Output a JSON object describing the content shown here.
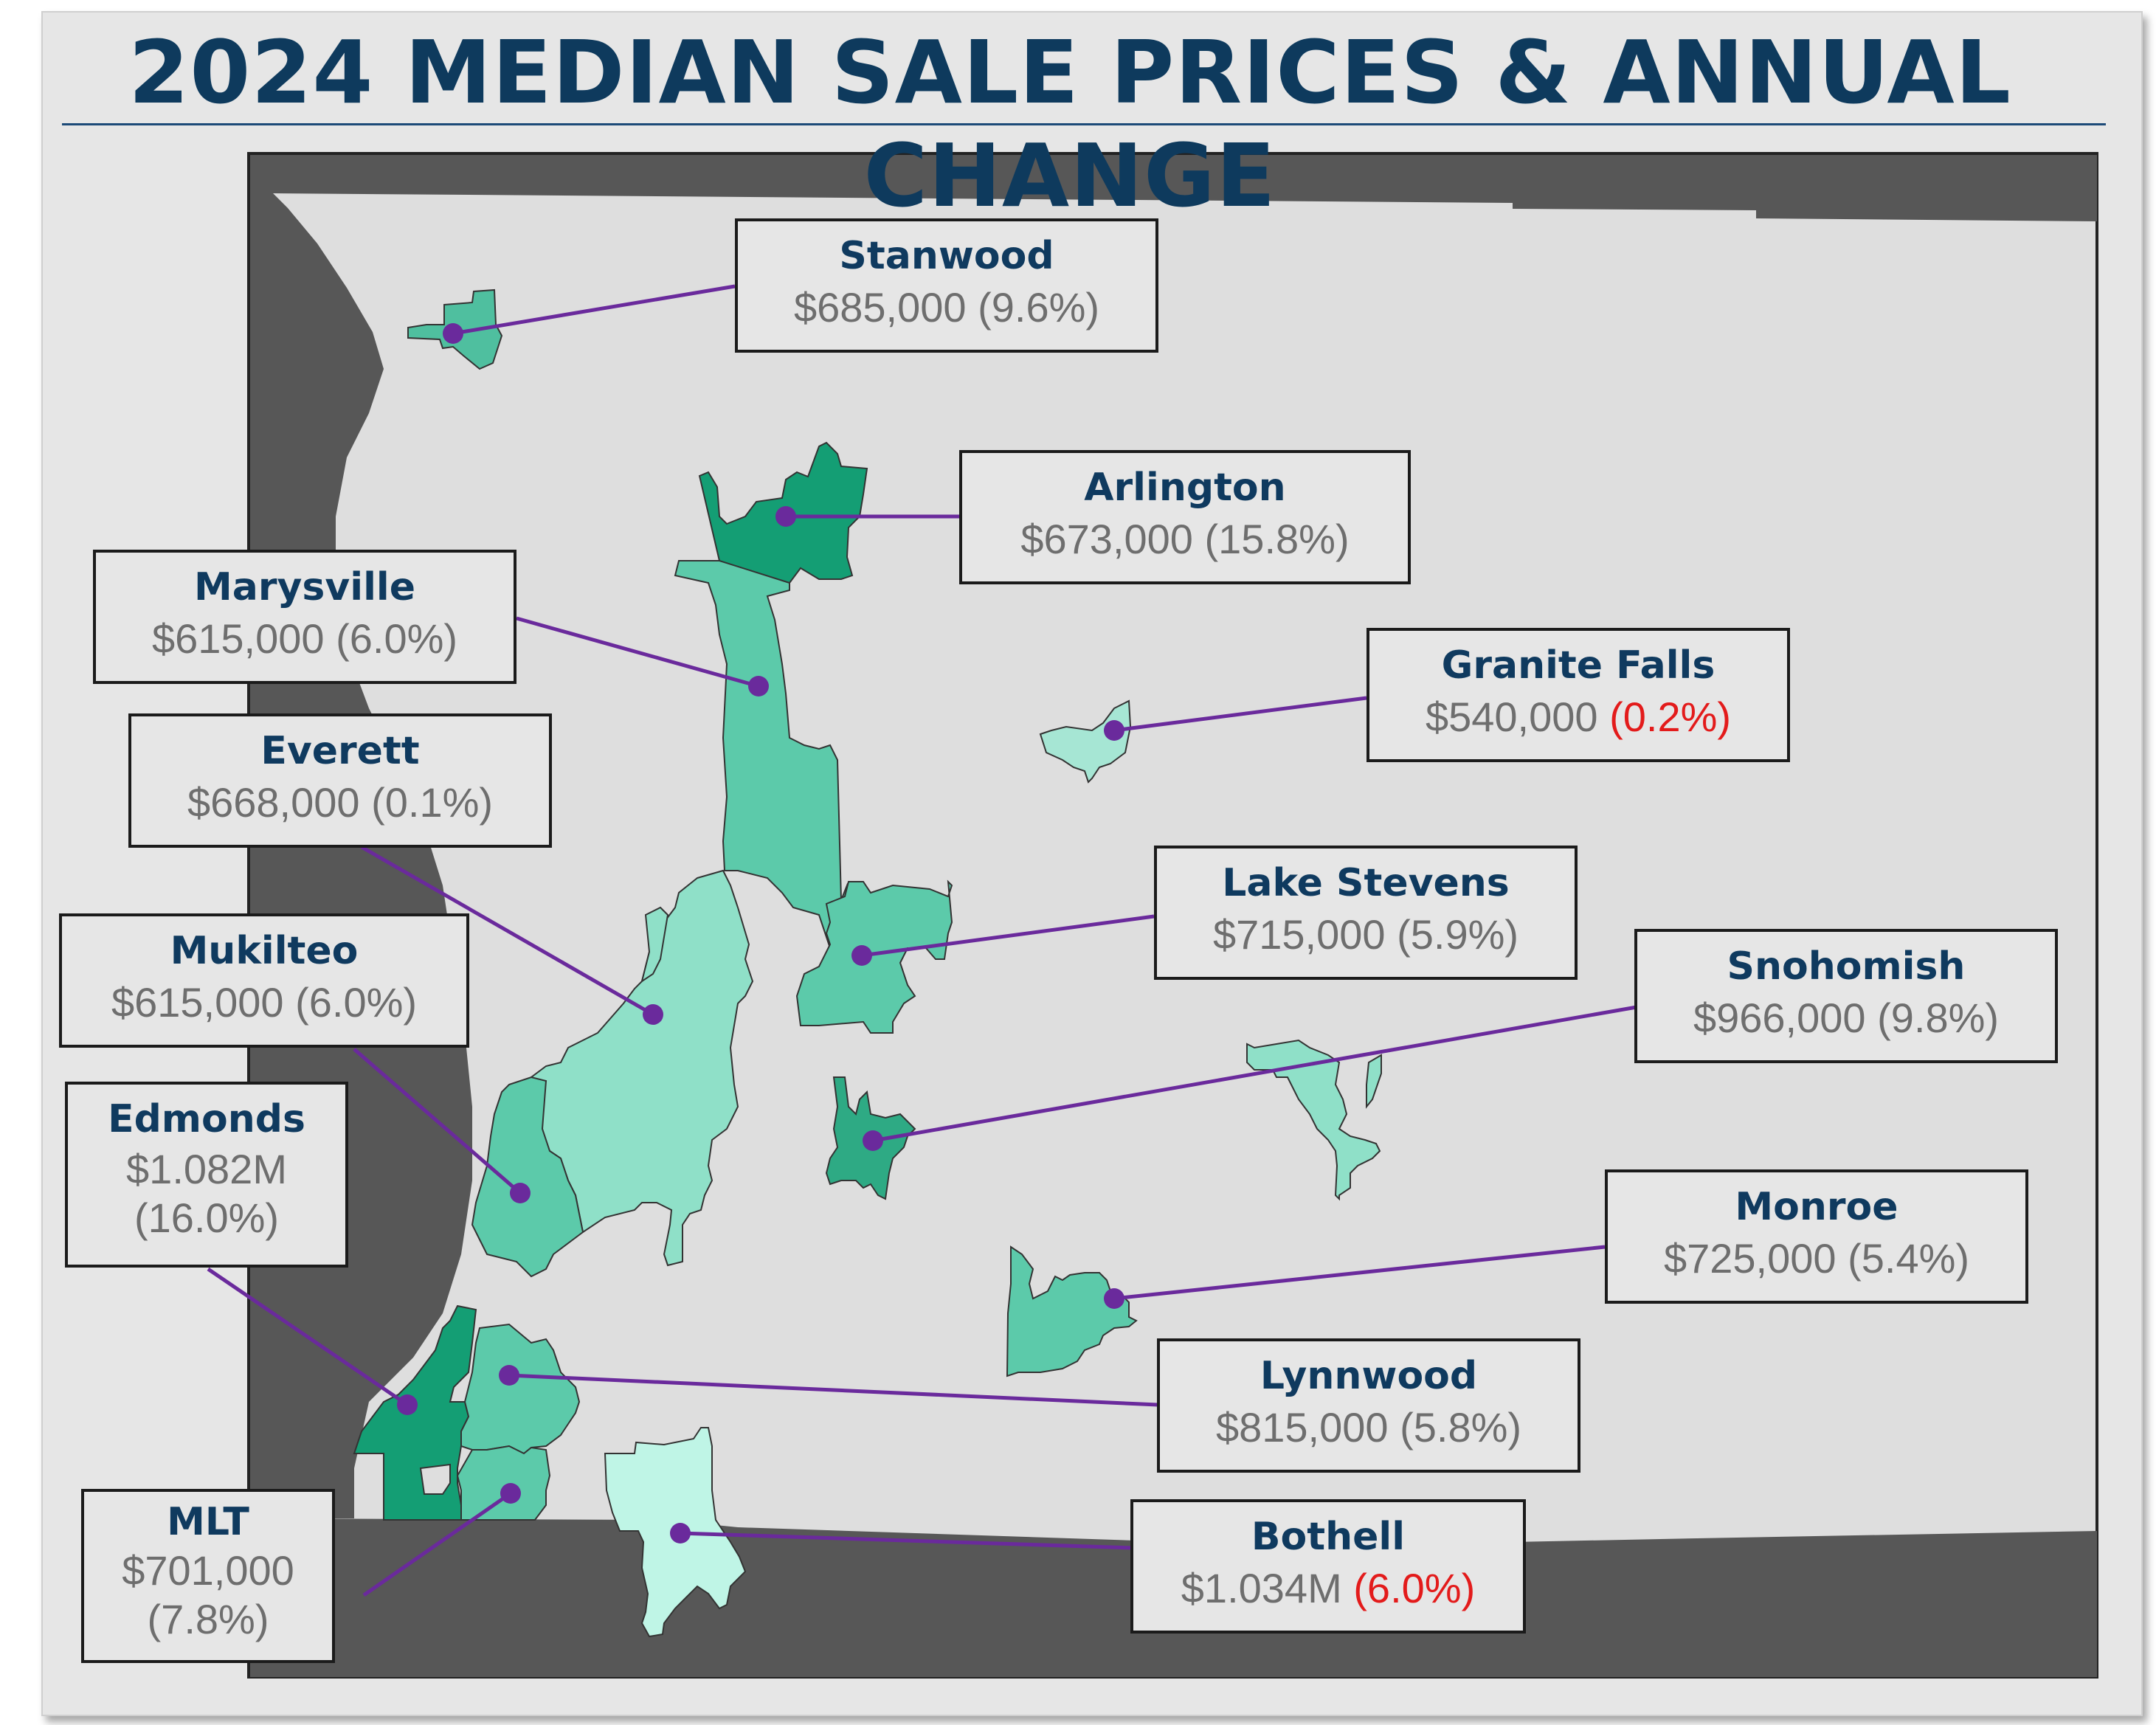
{
  "title": "2024 MEDIAN SALE PRICES & ANNUAL CHANGE",
  "colors": {
    "title": "#0e3a5d",
    "name": "#0f3a5f",
    "value": "#6e6e6e",
    "negative": "#e31b1b",
    "leader": "#6a2a9c",
    "water": "#555555",
    "land": "#dedede"
  },
  "cities": {
    "stanwood": {
      "name": "Stanwood",
      "price": "$685,000",
      "change": "(9.6%)"
    },
    "arlington": {
      "name": "Arlington",
      "price": "$673,000",
      "change": "(15.8%)"
    },
    "marysville": {
      "name": "Marysville",
      "price": "$615,000",
      "change": "(6.0%)"
    },
    "granite_falls": {
      "name": "Granite Falls",
      "price": "$540,000",
      "change": "(0.2%)"
    },
    "everett": {
      "name": "Everett",
      "price": "$668,000",
      "change": "(0.1%)"
    },
    "lake_stevens": {
      "name": "Lake Stevens",
      "price": "$715,000",
      "change": "(5.9%)"
    },
    "mukilteo": {
      "name": "Mukilteo",
      "price": "$615,000",
      "change": "(6.0%)"
    },
    "snohomish": {
      "name": "Snohomish",
      "price": "$966,000",
      "change": "(9.8%)"
    },
    "edmonds": {
      "name": "Edmonds",
      "price": "$1.082M",
      "change": "(16.0%)"
    },
    "monroe": {
      "name": "Monroe",
      "price": "$725,000",
      "change": "(5.4%)"
    },
    "lynnwood": {
      "name": "Lynnwood",
      "price": "$815,000",
      "change": "(5.8%)"
    },
    "mlt": {
      "name": "MLT",
      "price": "$701,000",
      "change": "(7.8%)"
    },
    "bothell": {
      "name": "Bothell",
      "price": "$1.034M",
      "change": "(6.0%)"
    }
  }
}
